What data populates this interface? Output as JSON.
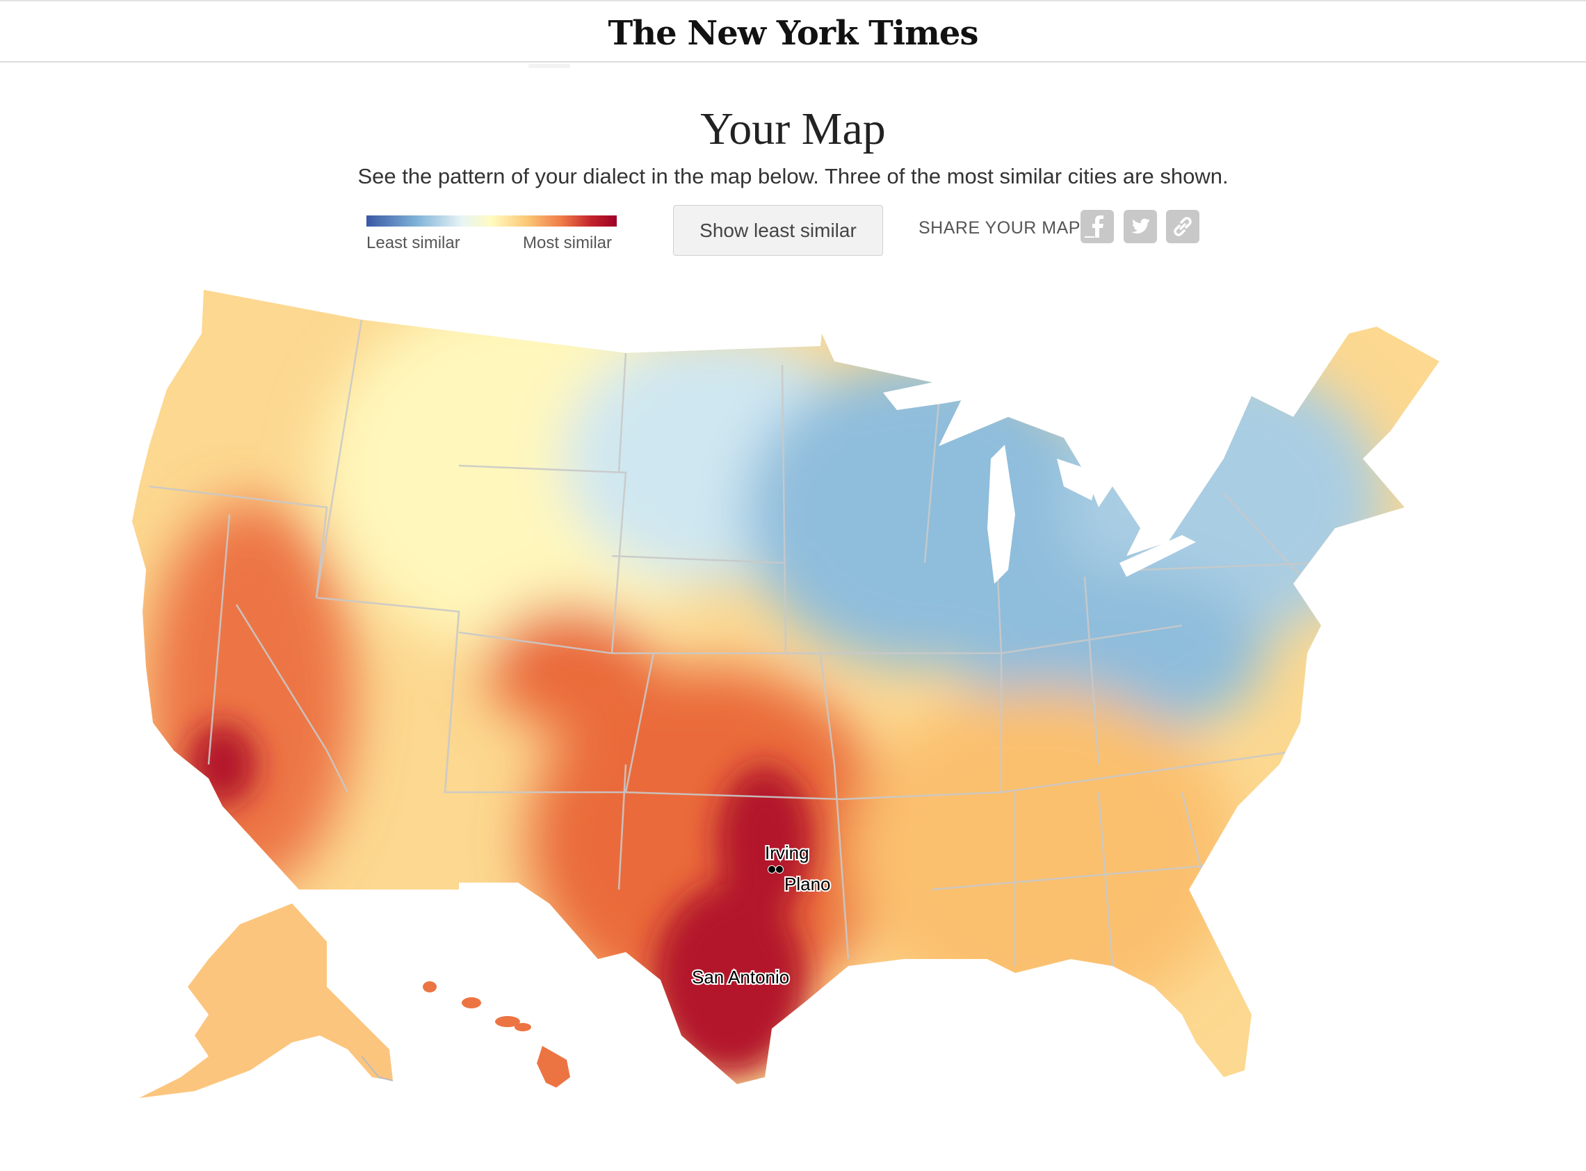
{
  "header": {
    "logo": "The New York Times"
  },
  "page": {
    "title": "Your Map",
    "subtitle": "See the pattern of your dialect in the map below. Three of the most similar cities are shown."
  },
  "legend": {
    "least_label": "Least similar",
    "most_label": "Most similar",
    "colors": [
      "#3a57a4",
      "#7fb2d8",
      "#e8f4f6",
      "#fffbc0",
      "#fbc877",
      "#ef7b48",
      "#c2232a",
      "#9e0127"
    ]
  },
  "controls": {
    "toggle_label": "Show least similar"
  },
  "share": {
    "label": "SHARE YOUR MAP:",
    "icons": [
      "facebook-icon",
      "twitter-icon",
      "link-icon"
    ]
  },
  "map": {
    "cities": [
      {
        "name": "Irving"
      },
      {
        "name": "Plano"
      },
      {
        "name": "San Antonio"
      }
    ],
    "region_colors": {
      "west": "#fcd890",
      "california": "#ed7444",
      "mountain": "#fff7bc",
      "plains_north": "#cfe7f1",
      "upper_midwest": "#8fbddc",
      "texas": "#ea6a3b",
      "south_texas": "#b3152a",
      "south": "#fbc06e",
      "northeast": "#a9cde3",
      "alaska": "#fcc57e",
      "hawaii": "#ec7443"
    }
  }
}
